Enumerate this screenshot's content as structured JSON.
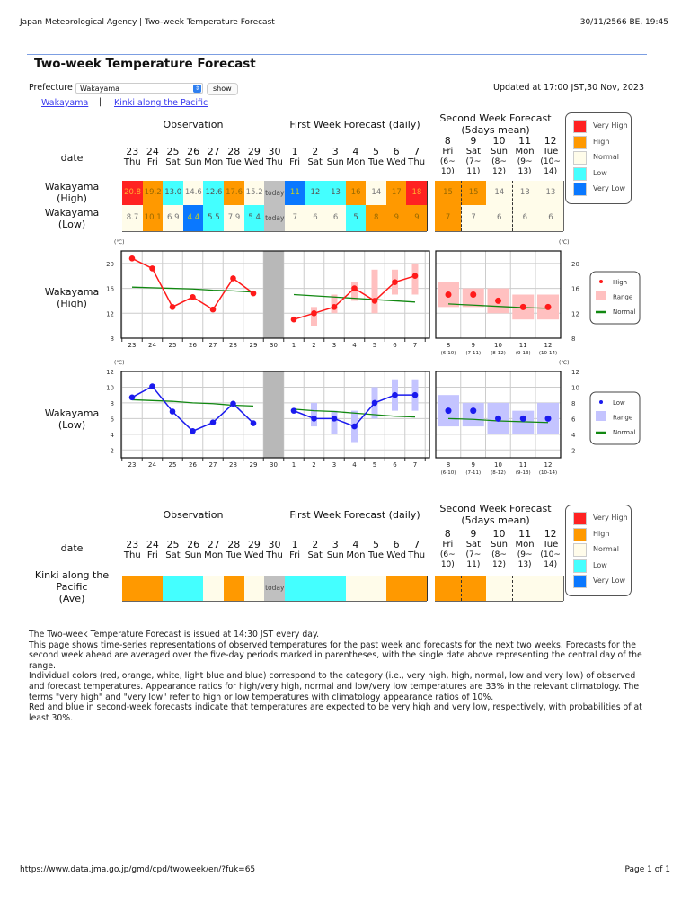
{
  "browser": {
    "page_title": "Japan Meteorological Agency | Two-week Temperature Forecast",
    "datetime": "30/11/2566 BE, 19:45"
  },
  "header": {
    "title": "Two-week Temperature Forecast",
    "prefecture_label": "Prefecture",
    "prefecture_value": "Wakayama",
    "show_label": "show",
    "links": [
      "Wakayama",
      "Kinki along the Pacific"
    ],
    "separator": "|",
    "updated": "Updated at 17:00 JST,30 Nov, 2023"
  },
  "sections": {
    "observation": "Observation",
    "first_week": "First Week Forecast (daily)",
    "second_week": "Second Week Forecast\n(5days mean)",
    "date_label": "date"
  },
  "days": [
    {
      "d": "23",
      "w": "Thu"
    },
    {
      "d": "24",
      "w": "Fri"
    },
    {
      "d": "25",
      "w": "Sat"
    },
    {
      "d": "26",
      "w": "Sun"
    },
    {
      "d": "27",
      "w": "Mon"
    },
    {
      "d": "28",
      "w": "Tue"
    },
    {
      "d": "29",
      "w": "Wed"
    },
    {
      "d": "30",
      "w": "Thu"
    },
    {
      "d": "1",
      "w": "Fri"
    },
    {
      "d": "2",
      "w": "Sat"
    },
    {
      "d": "3",
      "w": "Sun"
    },
    {
      "d": "4",
      "w": "Mon"
    },
    {
      "d": "5",
      "w": "Tue"
    },
    {
      "d": "6",
      "w": "Wed"
    },
    {
      "d": "7",
      "w": "Thu"
    }
  ],
  "second_days": [
    {
      "d": "8",
      "w": "Fri",
      "r": "(6~\n10)"
    },
    {
      "d": "9",
      "w": "Sat",
      "r": "(7~\n11)"
    },
    {
      "d": "10",
      "w": "Sun",
      "r": "(8~\n12)"
    },
    {
      "d": "11",
      "w": "Mon",
      "r": "(9~\n13)"
    },
    {
      "d": "12",
      "w": "Tue",
      "r": "(10~\n14)"
    }
  ],
  "colors": {
    "vh": "#ff2222",
    "h": "#ff9900",
    "n": "#fffcea",
    "l": "#44ffff",
    "vl": "#0a78ff",
    "today": "#c0c0c0"
  },
  "legend": [
    {
      "key": "vh",
      "label": "Very High"
    },
    {
      "key": "h",
      "label": "High"
    },
    {
      "key": "n",
      "label": "Normal"
    },
    {
      "key": "l",
      "label": "Low"
    },
    {
      "key": "vl",
      "label": "Very Low"
    }
  ],
  "table_rows": [
    {
      "label": "Wakayama\n(High)",
      "cells": [
        {
          "v": "20.8",
          "c": "vh"
        },
        {
          "v": "19.2",
          "c": "h"
        },
        {
          "v": "13.0",
          "c": "l"
        },
        {
          "v": "14.6",
          "c": "n"
        },
        {
          "v": "12.6",
          "c": "l"
        },
        {
          "v": "17.6",
          "c": "h"
        },
        {
          "v": "15.2",
          "c": "n"
        },
        {
          "v": "today",
          "c": "today"
        },
        {
          "v": "11",
          "c": "vl"
        },
        {
          "v": "12",
          "c": "l"
        },
        {
          "v": "13",
          "c": "l"
        },
        {
          "v": "16",
          "c": "h"
        },
        {
          "v": "14",
          "c": "n"
        },
        {
          "v": "17",
          "c": "h"
        },
        {
          "v": "18",
          "c": "vh"
        }
      ],
      "second": [
        {
          "v": "15",
          "c": "h"
        },
        {
          "v": "15",
          "c": "h"
        },
        {
          "v": "14",
          "c": "n"
        },
        {
          "v": "13",
          "c": "n"
        },
        {
          "v": "13",
          "c": "n"
        }
      ]
    },
    {
      "label": "Wakayama\n(Low)",
      "cells": [
        {
          "v": "8.7",
          "c": "n"
        },
        {
          "v": "10.1",
          "c": "h"
        },
        {
          "v": "6.9",
          "c": "n"
        },
        {
          "v": "4.4",
          "c": "vl"
        },
        {
          "v": "5.5",
          "c": "l"
        },
        {
          "v": "7.9",
          "c": "n"
        },
        {
          "v": "5.4",
          "c": "l"
        },
        {
          "v": "today",
          "c": "today"
        },
        {
          "v": "7",
          "c": "n"
        },
        {
          "v": "6",
          "c": "n"
        },
        {
          "v": "6",
          "c": "n"
        },
        {
          "v": "5",
          "c": "l"
        },
        {
          "v": "8",
          "c": "h"
        },
        {
          "v": "9",
          "c": "h"
        },
        {
          "v": "9",
          "c": "h"
        }
      ],
      "second": [
        {
          "v": "7",
          "c": "h"
        },
        {
          "v": "7",
          "c": "n"
        },
        {
          "v": "6",
          "c": "n"
        },
        {
          "v": "6",
          "c": "n"
        },
        {
          "v": "6",
          "c": "n"
        }
      ]
    }
  ],
  "area_table": {
    "label": "Kinki along the\nPacific\n(Ave)",
    "cells": [
      {
        "v": "",
        "c": "h"
      },
      {
        "v": "",
        "c": "h"
      },
      {
        "v": "",
        "c": "l"
      },
      {
        "v": "",
        "c": "l"
      },
      {
        "v": "",
        "c": "n"
      },
      {
        "v": "",
        "c": "h"
      },
      {
        "v": "",
        "c": "n"
      },
      {
        "v": "today",
        "c": "today"
      },
      {
        "v": "",
        "c": "l"
      },
      {
        "v": "",
        "c": "l"
      },
      {
        "v": "",
        "c": "l"
      },
      {
        "v": "",
        "c": "n"
      },
      {
        "v": "",
        "c": "n"
      },
      {
        "v": "",
        "c": "h"
      },
      {
        "v": "",
        "c": "h"
      }
    ],
    "second": [
      {
        "v": "",
        "c": "h"
      },
      {
        "v": "",
        "c": "h"
      },
      {
        "v": "",
        "c": "n"
      },
      {
        "v": "",
        "c": "n"
      },
      {
        "v": "",
        "c": "n"
      }
    ]
  },
  "chart_data": [
    {
      "type": "line",
      "row_label": "Wakayama\n(High)",
      "unit": "(℃)",
      "ylim": [
        8,
        22
      ],
      "yticks": [
        8,
        12,
        16,
        20
      ],
      "grid": true,
      "color": "#ff1a1a",
      "range_color": "#ffc0c0",
      "normal_color": "#118811",
      "x": [
        "23",
        "24",
        "25",
        "26",
        "27",
        "28",
        "29",
        "30",
        "1",
        "2",
        "3",
        "4",
        "5",
        "6",
        "7"
      ],
      "observed": [
        20.8,
        19.2,
        13.0,
        14.6,
        12.6,
        17.6,
        15.2
      ],
      "observed_normal": [
        16.2,
        16.1,
        16.0,
        15.9,
        15.7,
        15.6,
        15.4
      ],
      "forecast": [
        11,
        12,
        13,
        16,
        14,
        17,
        18
      ],
      "forecast_range": [
        null,
        [
          10,
          13
        ],
        [
          12,
          15
        ],
        [
          14,
          17
        ],
        [
          12,
          19
        ],
        [
          15,
          19
        ],
        [
          15,
          20
        ]
      ],
      "forecast_normal": [
        15.0,
        14.8,
        14.6,
        14.4,
        14.2,
        14.0,
        13.8
      ],
      "second_x": [
        "8",
        "9",
        "10",
        "11",
        "12"
      ],
      "second_x_sub": [
        "(6-10)",
        "(7-11)",
        "(8-12)",
        "(9-13)",
        "(10-14)"
      ],
      "second": [
        15,
        15,
        14,
        13,
        13
      ],
      "second_range": [
        [
          13,
          17
        ],
        [
          13,
          16
        ],
        [
          12,
          16
        ],
        [
          11,
          15
        ],
        [
          11,
          15
        ]
      ],
      "second_normal": [
        13.5,
        13.3,
        13.1,
        12.9,
        12.8
      ],
      "legend": [
        "High",
        "Range",
        "Normal"
      ],
      "legend_placement": "right"
    },
    {
      "type": "line",
      "row_label": "Wakayama\n(Low)",
      "unit": "(℃)",
      "ylim": [
        1,
        12
      ],
      "yticks": [
        2,
        4,
        6,
        8,
        10,
        12
      ],
      "grid": true,
      "color": "#1a1aee",
      "range_color": "#c4c4ff",
      "normal_color": "#118811",
      "x": [
        "23",
        "24",
        "25",
        "26",
        "27",
        "28",
        "29",
        "30",
        "1",
        "2",
        "3",
        "4",
        "5",
        "6",
        "7"
      ],
      "observed": [
        8.7,
        10.1,
        6.9,
        4.4,
        5.5,
        7.9,
        5.4
      ],
      "observed_normal": [
        8.4,
        8.3,
        8.2,
        8.0,
        7.9,
        7.7,
        7.6
      ],
      "forecast": [
        7,
        6,
        6,
        5,
        8,
        9,
        9
      ],
      "forecast_range": [
        null,
        [
          5,
          8
        ],
        [
          4,
          7
        ],
        [
          3,
          7
        ],
        [
          6,
          10
        ],
        [
          7,
          11
        ],
        [
          7,
          11
        ]
      ],
      "forecast_normal": [
        7.2,
        7.0,
        6.9,
        6.7,
        6.5,
        6.3,
        6.2
      ],
      "second_x": [
        "8",
        "9",
        "10",
        "11",
        "12"
      ],
      "second_x_sub": [
        "(6-10)",
        "(7-11)",
        "(8-12)",
        "(9-13)",
        "(10-14)"
      ],
      "second": [
        7,
        7,
        6,
        6,
        6
      ],
      "second_range": [
        [
          5,
          9
        ],
        [
          5,
          8
        ],
        [
          4,
          8
        ],
        [
          4,
          7
        ],
        [
          4,
          8
        ]
      ],
      "second_normal": [
        6.0,
        5.9,
        5.7,
        5.6,
        5.5
      ],
      "legend": [
        "Low",
        "Range",
        "Normal"
      ],
      "legend_placement": "right"
    }
  ],
  "notes": [
    "The Two-week Temperature Forecast is issued at 14:30 JST every day.",
    "This page shows time-series representations of observed temperatures for the past week and forecasts for the next two weeks. Forecasts for the second week ahead are averaged over the five-day periods marked in parentheses, with the single date above representing the central day of the range.",
    "Individual colors (red, orange, white, light blue and blue) correspond to the category (i.e., very high, high, normal, low and very low) of observed and forecast temperatures. Appearance ratios for high/very high, normal and low/very low temperatures are 33% in the relevant climatology. The terms \"very high\" and \"very low\" refer to high or low temperatures with climatology appearance ratios of 10%.",
    "Red and blue in second-week forecasts indicate that temperatures are expected to be very high and very low, respectively, with probabilities of at least 30%."
  ],
  "footer": {
    "url": "https://www.data.jma.go.jp/gmd/cpd/twoweek/en/?fuk=65",
    "page": "Page 1 of 1"
  }
}
